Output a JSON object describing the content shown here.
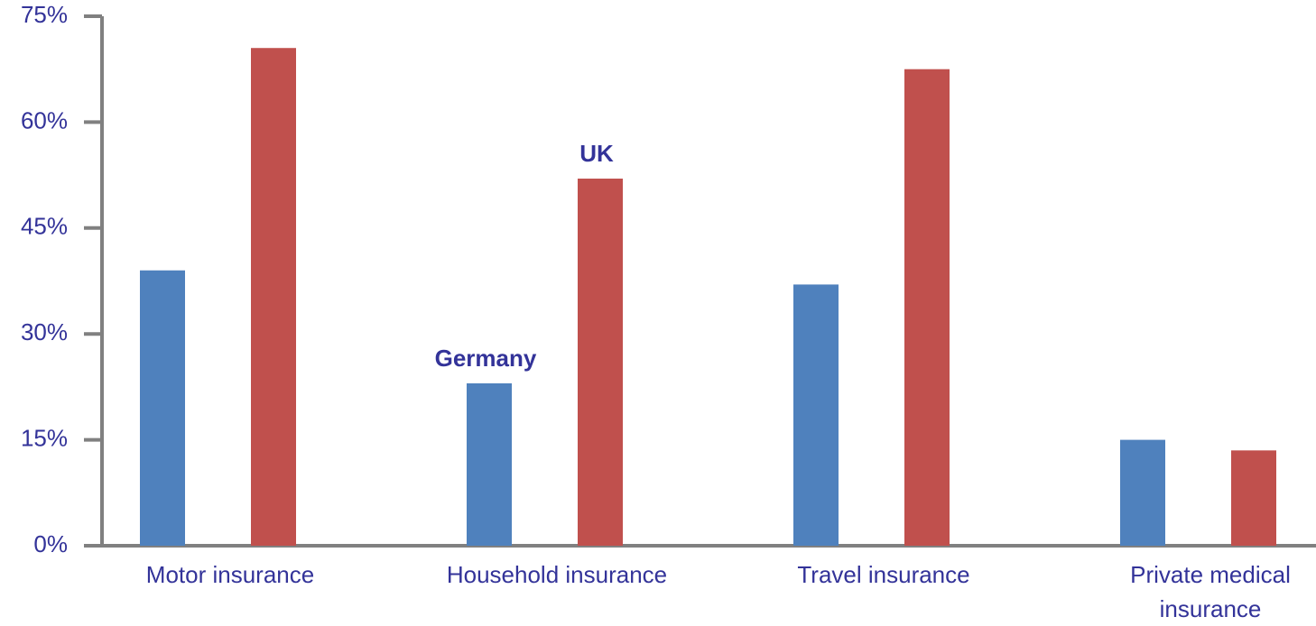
{
  "chart_data": {
    "type": "bar",
    "categories": [
      "Motor insurance",
      "Household insurance",
      "Travel insurance",
      "Private medical insurance"
    ],
    "series": [
      {
        "name": "Germany",
        "color": "#4f81bd",
        "values": [
          39,
          23,
          37,
          15
        ]
      },
      {
        "name": "UK",
        "color": "#c0504d",
        "values": [
          70.5,
          52,
          67.5,
          13.5
        ]
      }
    ],
    "ylim": [
      0,
      75
    ],
    "yticks": [
      {
        "value": 0,
        "label": "0%"
      },
      {
        "value": 15,
        "label": "15%"
      },
      {
        "value": 30,
        "label": "30%"
      },
      {
        "value": 45,
        "label": "45%"
      },
      {
        "value": 60,
        "label": "60%"
      },
      {
        "value": 75,
        "label": "75%"
      }
    ],
    "grid": false
  }
}
